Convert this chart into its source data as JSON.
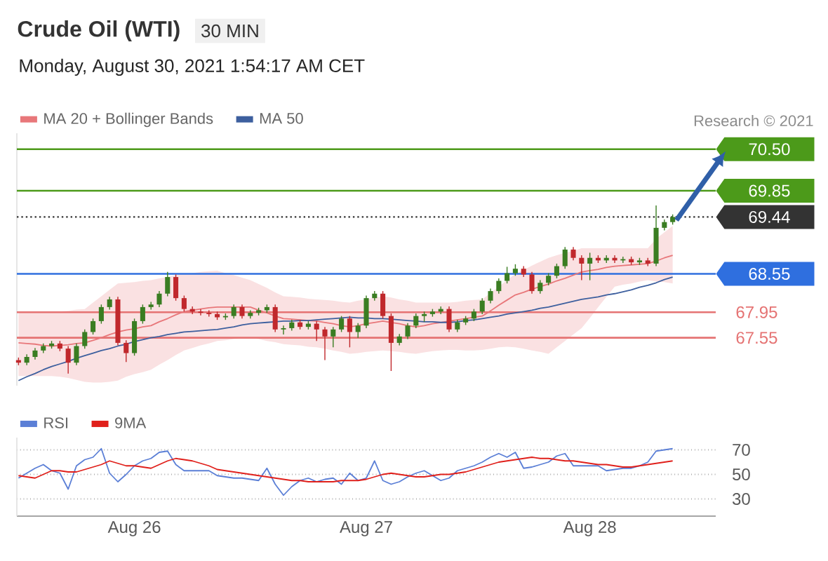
{
  "chart_data": [
    {
      "type": "candlestick",
      "title": "Crude Oil (WTI)",
      "subtitle": "30 MIN",
      "annotations": [
        "Monday, August 30, 2021 1:54:17 AM CET",
        "Research © 2021"
      ],
      "ylim": [
        66.8,
        70.75
      ],
      "ohlc": [
        [
          67.2,
          67.24,
          67.12,
          67.16
        ],
        [
          67.16,
          67.29,
          67.12,
          67.25
        ],
        [
          67.25,
          67.39,
          67.21,
          67.35
        ],
        [
          67.35,
          67.46,
          67.31,
          67.42
        ],
        [
          67.42,
          67.5,
          67.38,
          67.46
        ],
        [
          67.46,
          67.5,
          67.34,
          67.38
        ],
        [
          67.38,
          67.42,
          66.99,
          67.16
        ],
        [
          67.16,
          67.46,
          67.12,
          67.42
        ],
        [
          67.42,
          67.68,
          67.38,
          67.64
        ],
        [
          67.64,
          67.85,
          67.6,
          67.81
        ],
        [
          67.81,
          68.07,
          67.77,
          68.03
        ],
        [
          68.03,
          68.19,
          67.99,
          68.15
        ],
        [
          68.15,
          68.19,
          67.43,
          67.47
        ],
        [
          67.47,
          67.51,
          67.17,
          67.31
        ],
        [
          67.31,
          67.85,
          67.27,
          67.81
        ],
        [
          67.81,
          68.07,
          67.77,
          68.03
        ],
        [
          68.03,
          68.11,
          67.99,
          68.07
        ],
        [
          68.07,
          68.28,
          68.03,
          68.24
        ],
        [
          68.24,
          68.58,
          68.2,
          68.5
        ],
        [
          68.5,
          68.54,
          68.13,
          68.17
        ],
        [
          68.17,
          68.21,
          67.96,
          68.0
        ],
        [
          68.0,
          68.04,
          67.92,
          67.96
        ],
        [
          67.96,
          68.0,
          67.9,
          67.94
        ],
        [
          67.94,
          67.98,
          67.88,
          67.92
        ],
        [
          67.92,
          67.96,
          67.83,
          67.87
        ],
        [
          67.87,
          67.93,
          67.83,
          67.89
        ],
        [
          67.89,
          68.07,
          67.85,
          68.03
        ],
        [
          68.03,
          68.07,
          67.85,
          67.89
        ],
        [
          67.89,
          67.98,
          67.85,
          67.94
        ],
        [
          67.94,
          68.02,
          67.9,
          67.98
        ],
        [
          67.98,
          68.07,
          67.94,
          68.03
        ],
        [
          68.03,
          68.07,
          67.64,
          67.68
        ],
        [
          67.68,
          67.74,
          67.6,
          67.7
        ],
        [
          67.7,
          67.83,
          67.66,
          67.79
        ],
        [
          67.79,
          67.83,
          67.68,
          67.72
        ],
        [
          67.72,
          67.81,
          67.68,
          67.77
        ],
        [
          67.77,
          67.81,
          67.5,
          67.68
        ],
        [
          67.68,
          67.72,
          67.2,
          67.57
        ],
        [
          67.57,
          67.72,
          67.4,
          67.68
        ],
        [
          67.68,
          67.89,
          67.64,
          67.85
        ],
        [
          67.85,
          67.89,
          67.4,
          67.64
        ],
        [
          67.64,
          67.78,
          67.55,
          67.74
        ],
        [
          67.74,
          68.21,
          67.7,
          68.17
        ],
        [
          68.17,
          68.28,
          68.13,
          68.24
        ],
        [
          68.24,
          68.28,
          67.85,
          67.89
        ],
        [
          67.89,
          67.93,
          67.03,
          67.47
        ],
        [
          67.47,
          67.61,
          67.43,
          67.57
        ],
        [
          67.57,
          67.78,
          67.53,
          67.74
        ],
        [
          67.74,
          67.93,
          67.7,
          67.89
        ],
        [
          67.89,
          67.96,
          67.8,
          67.92
        ],
        [
          67.92,
          68.0,
          67.88,
          67.96
        ],
        [
          67.96,
          68.04,
          67.92,
          68.0
        ],
        [
          68.0,
          68.04,
          67.64,
          67.68
        ],
        [
          67.68,
          67.83,
          67.64,
          67.79
        ],
        [
          67.79,
          67.89,
          67.75,
          67.85
        ],
        [
          67.85,
          68.0,
          67.81,
          67.96
        ],
        [
          67.96,
          68.17,
          67.92,
          68.13
        ],
        [
          68.13,
          68.32,
          68.09,
          68.28
        ],
        [
          68.28,
          68.48,
          68.24,
          68.44
        ],
        [
          68.44,
          68.66,
          68.4,
          68.56
        ],
        [
          68.56,
          68.7,
          68.52,
          68.63
        ],
        [
          68.63,
          68.67,
          68.5,
          68.54
        ],
        [
          68.54,
          68.58,
          68.24,
          68.28
        ],
        [
          68.28,
          68.45,
          68.24,
          68.41
        ],
        [
          68.41,
          68.56,
          68.37,
          68.52
        ],
        [
          68.52,
          68.71,
          68.48,
          68.67
        ],
        [
          68.67,
          68.97,
          68.63,
          68.93
        ],
        [
          68.93,
          68.97,
          68.76,
          68.8
        ],
        [
          68.8,
          68.84,
          68.45,
          68.71
        ],
        [
          68.71,
          68.88,
          68.45,
          68.8
        ],
        [
          68.8,
          68.84,
          68.72,
          68.76
        ],
        [
          68.76,
          68.84,
          68.72,
          68.8
        ],
        [
          68.8,
          68.84,
          68.72,
          68.76
        ],
        [
          68.76,
          68.82,
          68.72,
          68.78
        ],
        [
          68.78,
          68.82,
          68.69,
          68.73
        ],
        [
          68.73,
          68.8,
          68.69,
          68.76
        ],
        [
          68.76,
          68.8,
          68.67,
          68.71
        ],
        [
          68.71,
          69.62,
          68.67,
          69.27
        ],
        [
          69.27,
          69.4,
          69.23,
          69.36
        ],
        [
          69.36,
          69.48,
          69.32,
          69.44
        ]
      ],
      "series": [
        {
          "name": "MA 20 + Bollinger Bands",
          "type": "line",
          "color": "#e8777a",
          "values": [
            67.47,
            67.46,
            67.45,
            67.43,
            67.42,
            67.43,
            67.44,
            67.46,
            67.47,
            67.51,
            67.55,
            67.6,
            67.64,
            67.67,
            67.69,
            67.72,
            67.74,
            67.8,
            67.85,
            67.91,
            67.96,
            67.98,
            68.0,
            68.02,
            68.03,
            68.03,
            68.03,
            68.03,
            68.03,
            67.98,
            67.94,
            67.89,
            67.85,
            67.84,
            67.83,
            67.82,
            67.81,
            67.79,
            67.77,
            67.74,
            67.72,
            67.74,
            67.77,
            67.79,
            67.81,
            67.79,
            67.77,
            67.74,
            67.72,
            67.74,
            67.77,
            67.79,
            67.81,
            67.83,
            67.85,
            67.87,
            67.89,
            67.97,
            68.06,
            68.14,
            68.22,
            68.26,
            68.31,
            68.35,
            68.39,
            68.44,
            68.48,
            68.53,
            68.58,
            68.6,
            68.62,
            68.65,
            68.67,
            68.68,
            68.69,
            68.7,
            68.71,
            68.75,
            68.8,
            68.84
          ],
          "upper": [
            67.94,
            67.94,
            67.94,
            67.94,
            67.94,
            67.96,
            67.97,
            67.99,
            68.0,
            68.1,
            68.2,
            68.3,
            68.4,
            68.41,
            68.42,
            68.44,
            68.45,
            68.48,
            68.5,
            68.53,
            68.55,
            68.56,
            68.58,
            68.59,
            68.6,
            68.56,
            68.53,
            68.49,
            68.45,
            68.39,
            68.33,
            68.26,
            68.2,
            68.19,
            68.18,
            68.16,
            68.15,
            68.14,
            68.13,
            68.11,
            68.1,
            68.13,
            68.15,
            68.18,
            68.2,
            68.18,
            68.15,
            68.13,
            68.1,
            68.1,
            68.1,
            68.1,
            68.1,
            68.11,
            68.13,
            68.14,
            68.15,
            68.25,
            68.35,
            68.45,
            68.55,
            68.61,
            68.68,
            68.74,
            68.8,
            68.84,
            68.88,
            68.91,
            68.95,
            68.95,
            68.95,
            68.95,
            68.95,
            68.95,
            68.95,
            68.95,
            68.95,
            69.1,
            69.2,
            69.3
          ],
          "lower": [
            66.95,
            66.95,
            66.95,
            66.95,
            66.95,
            66.94,
            66.92,
            66.89,
            66.86,
            66.85,
            66.85,
            66.86,
            66.88,
            66.94,
            66.98,
            67.01,
            67.05,
            67.13,
            67.2,
            67.28,
            67.35,
            67.39,
            67.43,
            67.46,
            67.5,
            67.51,
            67.53,
            67.54,
            67.55,
            67.53,
            67.5,
            67.48,
            67.45,
            67.44,
            67.43,
            67.41,
            67.4,
            67.38,
            67.35,
            67.33,
            67.3,
            67.31,
            67.33,
            67.34,
            67.35,
            67.34,
            67.33,
            67.31,
            67.3,
            67.32,
            67.34,
            67.35,
            67.36,
            67.36,
            67.35,
            67.35,
            67.36,
            67.38,
            67.4,
            67.41,
            67.4,
            67.38,
            67.35,
            67.33,
            67.3,
            67.4,
            67.5,
            67.6,
            67.7,
            67.86,
            68.03,
            68.19,
            68.35,
            68.38,
            68.4,
            68.43,
            68.45,
            68.43,
            68.42,
            68.4
          ]
        },
        {
          "name": "MA 50",
          "type": "line",
          "color": "#3d5f9e",
          "values": [
            66.88,
            66.94,
            66.99,
            67.05,
            67.1,
            67.14,
            67.18,
            67.23,
            67.27,
            67.31,
            67.35,
            67.38,
            67.42,
            67.45,
            67.49,
            67.52,
            67.55,
            67.57,
            67.6,
            67.62,
            67.64,
            67.65,
            67.66,
            67.67,
            67.68,
            67.7,
            67.72,
            67.75,
            67.77,
            67.78,
            67.79,
            67.8,
            67.81,
            67.81,
            67.82,
            67.82,
            67.83,
            67.84,
            67.85,
            67.86,
            67.87,
            67.86,
            67.86,
            67.85,
            67.85,
            67.84,
            67.83,
            67.82,
            67.81,
            67.8,
            67.8,
            67.79,
            67.79,
            67.8,
            67.82,
            67.83,
            67.85,
            67.87,
            67.89,
            67.92,
            67.94,
            67.96,
            67.98,
            68.01,
            68.03,
            68.06,
            68.09,
            68.12,
            68.15,
            68.17,
            68.19,
            68.22,
            68.24,
            68.27,
            68.3,
            68.34,
            68.37,
            68.41,
            68.46,
            68.5
          ]
        }
      ],
      "ref_lines": [
        {
          "axis": "y",
          "value": 70.5,
          "label": "70.50",
          "color": "#4c9a1a"
        },
        {
          "axis": "y",
          "value": 69.85,
          "label": "69.85",
          "color": "#4c9a1a"
        },
        {
          "axis": "y",
          "value": 69.44,
          "label": "69.44",
          "color": "#333333",
          "line_style": "dotted"
        },
        {
          "axis": "y",
          "value": 68.55,
          "label": "68.55",
          "color": "#2f6fdf"
        },
        {
          "axis": "y",
          "value": 67.95,
          "label": "67.95",
          "color": "#e57373"
        },
        {
          "axis": "y",
          "value": 67.55,
          "label": "67.55",
          "color": "#e57373"
        }
      ],
      "legend": "top left"
    },
    {
      "type": "line",
      "categories": [
        null,
        null,
        null,
        null,
        null,
        null,
        null,
        null,
        null,
        null,
        null,
        null,
        null,
        null,
        "Aug 26",
        null,
        null,
        null,
        null,
        null,
        null,
        null,
        null,
        null,
        null,
        null,
        null,
        null,
        null,
        null,
        null,
        null,
        null,
        null,
        null,
        null,
        null,
        null,
        null,
        null,
        null,
        null,
        "Aug 27",
        null,
        null,
        null,
        null,
        null,
        null,
        null,
        null,
        null,
        null,
        null,
        null,
        null,
        null,
        null,
        null,
        null,
        null,
        null,
        null,
        null,
        null,
        null,
        null,
        null,
        null,
        "Aug 28",
        null,
        null,
        null,
        null,
        null,
        null,
        null,
        null,
        null,
        null
      ],
      "ylim": [
        16,
        80
      ],
      "yticks": [
        30,
        50,
        70
      ],
      "grid": "y",
      "series": [
        {
          "name": "RSI",
          "color": "#5b7fd6",
          "values": [
            47,
            51,
            55,
            58,
            53,
            51,
            38,
            57,
            62,
            64,
            71,
            51,
            44,
            50,
            57,
            61,
            63,
            68,
            69,
            58,
            53,
            53,
            53,
            53,
            49,
            48,
            47,
            47,
            46,
            45,
            55,
            42,
            33,
            40,
            45,
            47,
            44,
            46,
            47,
            42,
            51,
            45,
            47,
            61,
            45,
            42,
            44,
            48,
            51,
            53,
            49,
            45,
            47,
            53,
            55,
            57,
            60,
            64,
            67,
            64,
            68,
            55,
            56,
            58,
            60,
            65,
            67,
            57,
            57,
            57,
            57,
            53,
            54,
            55,
            55,
            57,
            60,
            69,
            70,
            71
          ]
        },
        {
          "name": "9MA",
          "color": "#e0201b",
          "values": [
            49,
            48,
            47,
            50,
            53,
            53,
            52,
            52,
            54,
            56,
            58,
            61,
            59,
            57,
            57,
            56,
            55,
            58,
            61,
            63,
            62,
            61,
            59,
            57,
            54,
            53,
            52,
            51,
            50,
            49,
            48,
            47,
            46,
            45,
            45,
            44,
            44,
            44,
            44,
            45,
            45,
            45,
            46,
            48,
            50,
            51,
            50,
            49,
            48,
            48,
            49,
            50,
            50,
            51,
            52,
            54,
            56,
            58,
            60,
            61,
            62,
            63,
            64,
            63,
            63,
            62,
            61,
            61,
            60,
            59,
            58,
            58,
            57,
            56,
            56,
            57,
            58,
            59,
            60,
            61
          ]
        }
      ],
      "legend": "top left"
    }
  ]
}
